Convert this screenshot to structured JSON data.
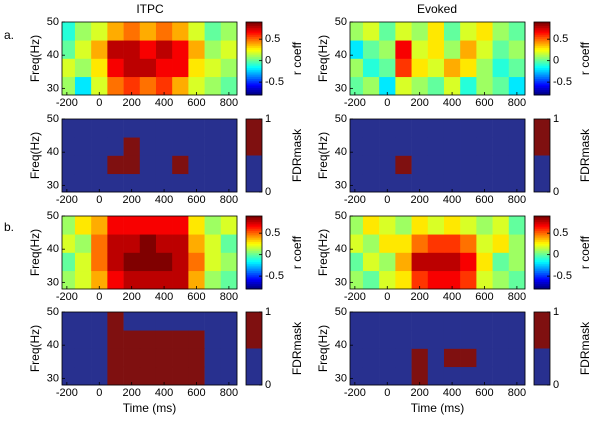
{
  "figure": {
    "columns": [
      "ITPC",
      "Evoked"
    ],
    "rows": [
      "a.",
      "b."
    ]
  },
  "chart_data": [
    {
      "type": "heatmap",
      "ylabel": "Freq(Hz)",
      "zlabel": "r coeff",
      "colormap": "jet",
      "xlim": [
        -230,
        850
      ],
      "xticks": [
        -200,
        0,
        200,
        400,
        600,
        800
      ],
      "ylim": [
        28,
        50
      ],
      "yticks": [
        30,
        40,
        50
      ],
      "zlim": [
        -0.8,
        0.9
      ],
      "zticks": [
        0.5,
        0,
        -0.5
      ],
      "xbins": [
        -230,
        -150,
        -50,
        50,
        150,
        250,
        350,
        450,
        550,
        650,
        750,
        850
      ],
      "ybins": [
        28,
        33.5,
        39,
        44.5,
        50
      ],
      "values": [
        [
          0.1,
          -0.2,
          0.2,
          0.5,
          0.6,
          0.5,
          0.6,
          0.4,
          0.2,
          0.1,
          0.0
        ],
        [
          0.2,
          0.1,
          0.3,
          0.7,
          0.8,
          0.8,
          0.7,
          0.7,
          0.3,
          0.2,
          0.1
        ],
        [
          0.0,
          0.2,
          0.4,
          0.8,
          0.8,
          0.7,
          0.8,
          0.7,
          0.4,
          0.1,
          0.2
        ],
        [
          -0.1,
          0.1,
          0.2,
          0.4,
          0.5,
          0.4,
          0.5,
          0.4,
          0.2,
          0.0,
          0.1
        ]
      ]
    },
    {
      "type": "heatmap",
      "ylabel": "Freq(Hz)",
      "zlabel": "r coeff",
      "colormap": "jet",
      "xlim": [
        -230,
        850
      ],
      "xticks": [
        -200,
        0,
        200,
        400,
        600,
        800
      ],
      "ylim": [
        28,
        50
      ],
      "yticks": [
        30,
        40,
        50
      ],
      "zlim": [
        -0.8,
        0.9
      ],
      "zticks": [
        0.5,
        0,
        -0.5
      ],
      "xbins": [
        -230,
        -150,
        -50,
        50,
        150,
        250,
        350,
        450,
        550,
        650,
        750,
        850
      ],
      "ybins": [
        28,
        33.5,
        39,
        44.5,
        50
      ],
      "values": [
        [
          0.0,
          0.1,
          -0.2,
          0.2,
          0.1,
          0.0,
          0.2,
          -0.1,
          0.1,
          0.0,
          -0.2
        ],
        [
          0.1,
          -0.1,
          0.0,
          0.6,
          0.3,
          0.2,
          0.4,
          0.3,
          0.1,
          -0.1,
          0.0
        ],
        [
          -0.2,
          0.0,
          0.1,
          0.7,
          0.2,
          0.3,
          0.1,
          0.4,
          0.2,
          0.0,
          0.1
        ],
        [
          0.1,
          0.2,
          0.0,
          0.2,
          0.1,
          0.3,
          0.0,
          0.2,
          0.3,
          0.1,
          0.0
        ]
      ]
    },
    {
      "type": "heatmap",
      "ylabel": "Freq(Hz)",
      "zlabel": "FDRmask",
      "colormap": "mask",
      "colors": [
        "#28308f",
        "#7f1010"
      ],
      "xlim": [
        -230,
        850
      ],
      "xticks": [
        -200,
        0,
        200,
        400,
        600,
        800
      ],
      "ylim": [
        28,
        50
      ],
      "yticks": [
        30,
        40,
        50
      ],
      "zlim": [
        0,
        1
      ],
      "zticks": [
        1,
        0
      ],
      "xbins": [
        -230,
        -150,
        -50,
        50,
        150,
        250,
        350,
        450,
        550,
        650,
        750,
        850
      ],
      "ybins": [
        28,
        33.5,
        39,
        44.5,
        50
      ],
      "values": [
        [
          0,
          0,
          0,
          0,
          0,
          0,
          0,
          0,
          0,
          0,
          0
        ],
        [
          0,
          0,
          0,
          1,
          1,
          0,
          0,
          1,
          0,
          0,
          0
        ],
        [
          0,
          0,
          0,
          0,
          1,
          0,
          0,
          0,
          0,
          0,
          0
        ],
        [
          0,
          0,
          0,
          0,
          0,
          0,
          0,
          0,
          0,
          0,
          0
        ]
      ]
    },
    {
      "type": "heatmap",
      "ylabel": "Freq(Hz)",
      "zlabel": "FDRmask",
      "colormap": "mask",
      "colors": [
        "#28308f",
        "#7f1010"
      ],
      "xlim": [
        -230,
        850
      ],
      "xticks": [
        -200,
        0,
        200,
        400,
        600,
        800
      ],
      "ylim": [
        28,
        50
      ],
      "yticks": [
        30,
        40,
        50
      ],
      "zlim": [
        0,
        1
      ],
      "zticks": [
        1,
        0
      ],
      "xbins": [
        -230,
        -150,
        -50,
        50,
        150,
        250,
        350,
        450,
        550,
        650,
        750,
        850
      ],
      "ybins": [
        28,
        33.5,
        39,
        44.5,
        50
      ],
      "values": [
        [
          0,
          0,
          0,
          0,
          0,
          0,
          0,
          0,
          0,
          0,
          0
        ],
        [
          0,
          0,
          0,
          1,
          0,
          0,
          0,
          0,
          0,
          0,
          0
        ],
        [
          0,
          0,
          0,
          0,
          0,
          0,
          0,
          0,
          0,
          0,
          0
        ],
        [
          0,
          0,
          0,
          0,
          0,
          0,
          0,
          0,
          0,
          0,
          0
        ]
      ]
    },
    {
      "type": "heatmap",
      "ylabel": "Freq(Hz)",
      "zlabel": "r coeff",
      "colormap": "jet",
      "xlim": [
        -230,
        850
      ],
      "xticks": [
        -200,
        0,
        200,
        400,
        600,
        800
      ],
      "ylim": [
        28,
        50
      ],
      "yticks": [
        30,
        40,
        50
      ],
      "zlim": [
        -0.8,
        0.9
      ],
      "zticks": [
        0.5,
        0,
        -0.5
      ],
      "xbins": [
        -230,
        -150,
        -50,
        50,
        150,
        250,
        350,
        450,
        550,
        650,
        750,
        850
      ],
      "ybins": [
        28,
        33.5,
        39,
        44.5,
        50
      ],
      "values": [
        [
          0.1,
          0.2,
          0.4,
          0.7,
          0.8,
          0.8,
          0.8,
          0.8,
          0.4,
          0.1,
          0.0
        ],
        [
          0.0,
          0.2,
          0.5,
          0.8,
          0.9,
          0.9,
          0.9,
          0.8,
          0.5,
          0.2,
          0.1
        ],
        [
          0.2,
          0.1,
          0.5,
          0.8,
          0.8,
          0.9,
          0.8,
          0.8,
          0.4,
          0.2,
          0.0
        ],
        [
          0.1,
          0.3,
          0.4,
          0.7,
          0.7,
          0.7,
          0.7,
          0.7,
          0.3,
          0.1,
          0.2
        ]
      ]
    },
    {
      "type": "heatmap",
      "ylabel": "Freq(Hz)",
      "zlabel": "r coeff",
      "colormap": "jet",
      "xlim": [
        -230,
        850
      ],
      "xticks": [
        -200,
        0,
        200,
        400,
        600,
        800
      ],
      "ylim": [
        28,
        50
      ],
      "yticks": [
        30,
        40,
        50
      ],
      "zlim": [
        -0.8,
        0.9
      ],
      "zticks": [
        0.5,
        0,
        -0.5
      ],
      "xbins": [
        -230,
        -150,
        -50,
        50,
        150,
        250,
        350,
        450,
        550,
        650,
        750,
        850
      ],
      "ybins": [
        28,
        33.5,
        39,
        44.5,
        50
      ],
      "values": [
        [
          0.1,
          0.0,
          0.2,
          0.3,
          0.6,
          0.7,
          0.7,
          0.6,
          0.2,
          0.1,
          0.0
        ],
        [
          0.0,
          0.2,
          0.1,
          0.4,
          0.8,
          0.8,
          0.8,
          0.7,
          0.3,
          0.0,
          0.1
        ],
        [
          0.2,
          0.1,
          0.3,
          0.3,
          0.5,
          0.6,
          0.6,
          0.5,
          0.2,
          0.3,
          0.1
        ],
        [
          0.1,
          0.3,
          0.2,
          0.1,
          0.3,
          0.2,
          0.3,
          0.2,
          0.1,
          0.2,
          0.0
        ]
      ]
    },
    {
      "type": "heatmap",
      "ylabel": "Freq(Hz)",
      "xlabel": "Time (ms)",
      "zlabel": "FDRmask",
      "colormap": "mask",
      "colors": [
        "#28308f",
        "#7f1010"
      ],
      "xlim": [
        -230,
        850
      ],
      "xticks": [
        -200,
        0,
        200,
        400,
        600,
        800
      ],
      "ylim": [
        28,
        50
      ],
      "yticks": [
        30,
        40,
        50
      ],
      "zlim": [
        0,
        1
      ],
      "zticks": [
        1,
        0
      ],
      "xbins": [
        -230,
        -150,
        -50,
        50,
        150,
        250,
        350,
        450,
        550,
        650,
        750,
        850
      ],
      "ybins": [
        28,
        33.5,
        39,
        44.5,
        50
      ],
      "values": [
        [
          0,
          0,
          0,
          1,
          1,
          1,
          1,
          1,
          1,
          0,
          0
        ],
        [
          0,
          0,
          0,
          1,
          1,
          1,
          1,
          1,
          1,
          0,
          0
        ],
        [
          0,
          0,
          0,
          1,
          1,
          1,
          1,
          1,
          1,
          0,
          0
        ],
        [
          0,
          0,
          0,
          1,
          0,
          0,
          0,
          0,
          0,
          0,
          0
        ]
      ]
    },
    {
      "type": "heatmap",
      "ylabel": "Freq(Hz)",
      "xlabel": "Time (ms)",
      "zlabel": "FDRmask",
      "colormap": "mask",
      "colors": [
        "#28308f",
        "#7f1010"
      ],
      "xlim": [
        -230,
        850
      ],
      "xticks": [
        -200,
        0,
        200,
        400,
        600,
        800
      ],
      "ylim": [
        28,
        50
      ],
      "yticks": [
        30,
        40,
        50
      ],
      "zlim": [
        0,
        1
      ],
      "zticks": [
        1,
        0
      ],
      "xbins": [
        -230,
        -150,
        -50,
        50,
        150,
        250,
        350,
        450,
        550,
        650,
        750,
        850
      ],
      "ybins": [
        28,
        33.5,
        39,
        44.5,
        50
      ],
      "values": [
        [
          0,
          0,
          0,
          0,
          1,
          0,
          0,
          0,
          0,
          0,
          0
        ],
        [
          0,
          0,
          0,
          0,
          1,
          0,
          1,
          1,
          0,
          0,
          0
        ],
        [
          0,
          0,
          0,
          0,
          0,
          0,
          0,
          0,
          0,
          0,
          0
        ],
        [
          0,
          0,
          0,
          0,
          0,
          0,
          0,
          0,
          0,
          0,
          0
        ]
      ]
    }
  ]
}
